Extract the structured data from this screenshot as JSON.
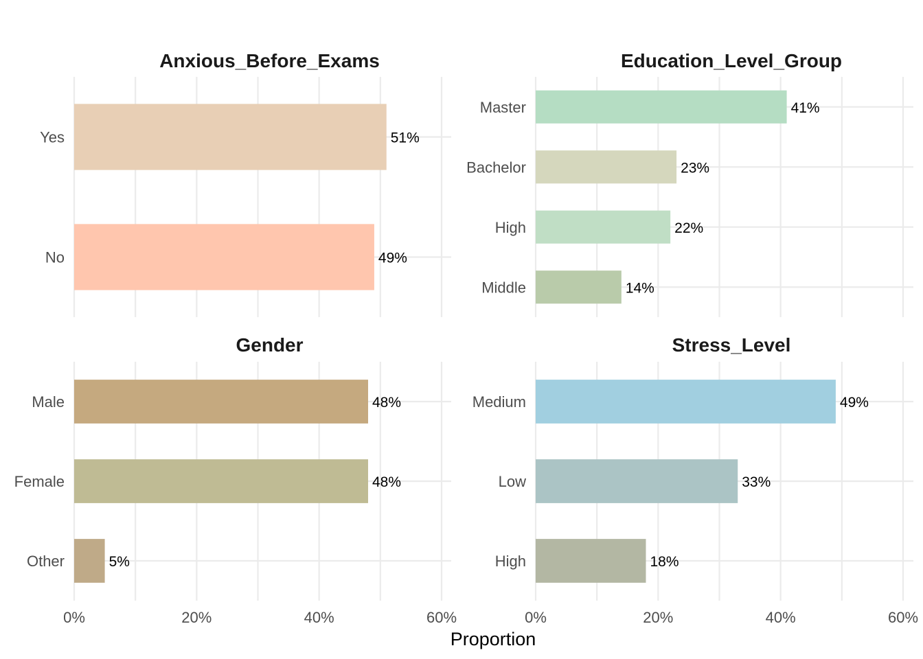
{
  "chart_data": [
    {
      "type": "bar",
      "orientation": "horizontal",
      "title": "Anxious_Before_Exams",
      "categories": [
        "Yes",
        "No"
      ],
      "values": [
        0.51,
        0.49
      ],
      "labels": [
        "51%",
        "49%"
      ],
      "colors": [
        "#E8CFB5",
        "#FFC6AE"
      ],
      "xlim": [
        0,
        0.6
      ]
    },
    {
      "type": "bar",
      "orientation": "horizontal",
      "title": "Education_Level_Group",
      "categories": [
        "Master",
        "Bachelor",
        "High",
        "Middle"
      ],
      "values": [
        0.41,
        0.23,
        0.22,
        0.14
      ],
      "labels": [
        "41%",
        "23%",
        "22%",
        "14%"
      ],
      "colors": [
        "#B5DDC3",
        "#D5D7BD",
        "#C0DEC5",
        "#B9CBAA"
      ],
      "xlim": [
        0,
        0.6
      ]
    },
    {
      "type": "bar",
      "orientation": "horizontal",
      "title": "Gender",
      "categories": [
        "Male",
        "Female",
        "Other"
      ],
      "values": [
        0.48,
        0.48,
        0.05
      ],
      "labels": [
        "48%",
        "48%",
        "5%"
      ],
      "colors": [
        "#C5A97F",
        "#BFBB94",
        "#BFAA88"
      ],
      "xlim": [
        0,
        0.6
      ]
    },
    {
      "type": "bar",
      "orientation": "horizontal",
      "title": "Stress_Level",
      "categories": [
        "Medium",
        "Low",
        "High"
      ],
      "values": [
        0.49,
        0.33,
        0.18
      ],
      "labels": [
        "49%",
        "33%",
        "18%"
      ],
      "colors": [
        "#A1CFE0",
        "#ABC4C5",
        "#B3B7A3"
      ],
      "xlim": [
        0,
        0.6
      ]
    }
  ],
  "x_ticks": [
    {
      "value": 0,
      "label": "0%"
    },
    {
      "value": 0.2,
      "label": "20%"
    },
    {
      "value": 0.4,
      "label": "40%"
    },
    {
      "value": 0.6,
      "label": "60%"
    }
  ],
  "xlabel": "Proportion",
  "grid": true
}
